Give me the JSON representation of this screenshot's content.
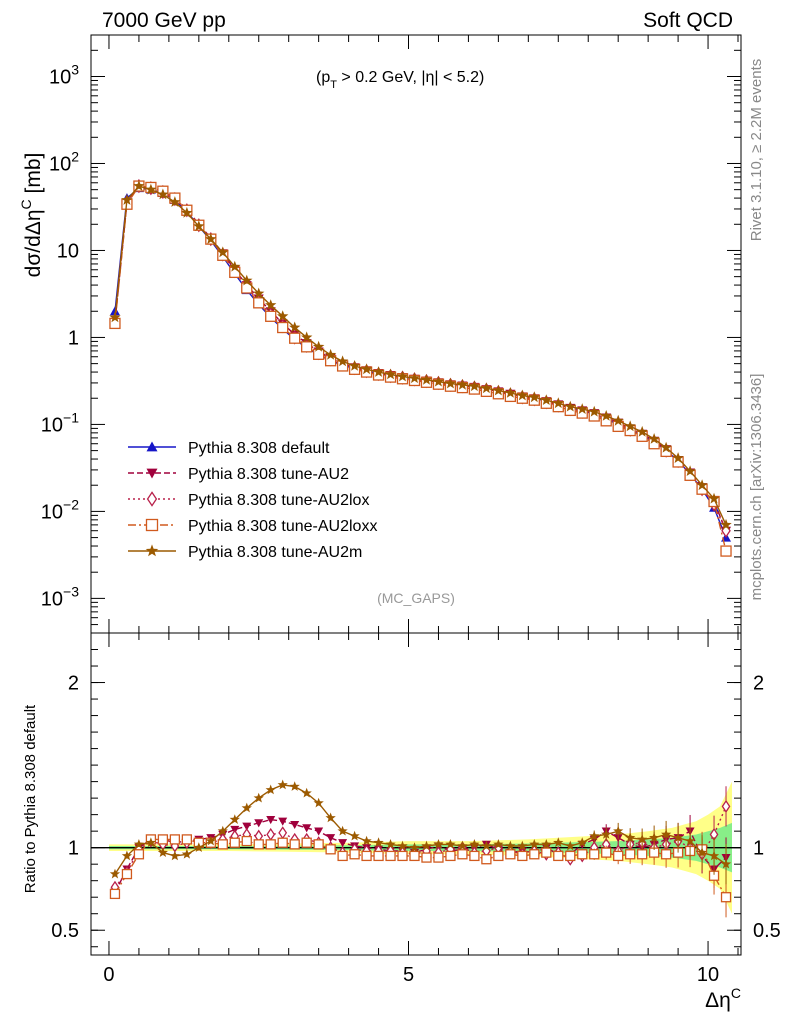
{
  "header": {
    "left": "7000 GeV pp",
    "right": "Soft QCD"
  },
  "annotation": "(MC_GAPS)",
  "cut_label": {
    "a": "(p",
    "b": "T",
    "c": " > 0.2 GeV, |η| < 5.2)"
  },
  "side_labels": {
    "rivet": "Rivet 3.1.10, ≥ 2.2M events",
    "mcplots": "mcplots.cern.ch [arXiv:1306.3436]"
  },
  "chart_data": [
    {
      "type": "line",
      "panel": "main",
      "ylabel": "dσ/dΔη^C [mb]",
      "yscale": "log",
      "ylim": [
        0.0004,
        3000
      ],
      "xlim": [
        -0.3,
        10.55
      ],
      "y_ticks": [
        {
          "v": 0.001,
          "base": "10",
          "exp": "−3"
        },
        {
          "v": 0.01,
          "base": "10",
          "exp": "−2"
        },
        {
          "v": 0.1,
          "base": "10",
          "exp": "−1"
        },
        {
          "v": 1,
          "base": "1",
          "exp": ""
        },
        {
          "v": 10,
          "base": "10",
          "exp": ""
        },
        {
          "v": 100,
          "base": "10",
          "exp": "2"
        },
        {
          "v": 1000,
          "base": "10",
          "exp": "3"
        }
      ],
      "legend_position": "lower-left",
      "x": [
        0.1,
        0.3,
        0.5,
        0.7,
        0.9,
        1.1,
        1.3,
        1.5,
        1.7,
        1.9,
        2.1,
        2.3,
        2.5,
        2.7,
        2.9,
        3.1,
        3.3,
        3.5,
        3.7,
        3.9,
        4.1,
        4.3,
        4.5,
        4.7,
        4.9,
        5.1,
        5.3,
        5.5,
        5.7,
        5.9,
        6.1,
        6.3,
        6.5,
        6.7,
        6.9,
        7.1,
        7.3,
        7.5,
        7.7,
        7.9,
        8.1,
        8.3,
        8.5,
        8.7,
        8.9,
        9.1,
        9.3,
        9.5,
        9.7,
        9.9,
        10.1,
        10.3
      ],
      "series": [
        {
          "name": "Pythia 8.308 default",
          "color": "#1616c8",
          "marker": "triangle-up",
          "dash": "",
          "values": [
            2.0,
            40,
            52,
            50,
            46,
            38,
            28,
            19,
            13,
            8.5,
            5.4,
            3.5,
            2.4,
            1.7,
            1.25,
            0.95,
            0.76,
            0.63,
            0.54,
            0.48,
            0.44,
            0.41,
            0.385,
            0.365,
            0.35,
            0.335,
            0.32,
            0.305,
            0.29,
            0.28,
            0.27,
            0.255,
            0.24,
            0.225,
            0.21,
            0.2,
            0.185,
            0.17,
            0.155,
            0.145,
            0.13,
            0.115,
            0.1,
            0.087,
            0.075,
            0.063,
            0.05,
            0.038,
            0.027,
            0.018,
            0.011,
            0.005
          ]
        },
        {
          "name": "Pythia 8.308 tune-AU2",
          "color": "#a0003c",
          "marker": "triangle-down",
          "dash": "6,3",
          "values": [
            1.5,
            35,
            56,
            52,
            48,
            40,
            30,
            20,
            14,
            9.3,
            6.0,
            4.0,
            2.8,
            2.0,
            1.45,
            1.08,
            0.86,
            0.69,
            0.58,
            0.5,
            0.455,
            0.42,
            0.39,
            0.37,
            0.35,
            0.335,
            0.32,
            0.305,
            0.29,
            0.28,
            0.27,
            0.255,
            0.24,
            0.225,
            0.21,
            0.2,
            0.185,
            0.17,
            0.155,
            0.145,
            0.135,
            0.12,
            0.105,
            0.09,
            0.078,
            0.065,
            0.052,
            0.039,
            0.028,
            0.019,
            0.013,
            0.006
          ]
        },
        {
          "name": "Pythia 8.308 tune-AU2lox",
          "color": "#b8204a",
          "marker": "diamond",
          "dash": "2,3",
          "values": [
            1.55,
            36,
            55,
            52,
            47,
            39,
            29,
            19.5,
            13.5,
            9,
            5.8,
            3.8,
            2.6,
            1.85,
            1.35,
            1.0,
            0.8,
            0.66,
            0.56,
            0.49,
            0.445,
            0.41,
            0.38,
            0.36,
            0.345,
            0.33,
            0.315,
            0.3,
            0.285,
            0.275,
            0.265,
            0.25,
            0.235,
            0.22,
            0.205,
            0.195,
            0.18,
            0.165,
            0.15,
            0.14,
            0.13,
            0.115,
            0.1,
            0.087,
            0.076,
            0.063,
            0.05,
            0.038,
            0.027,
            0.018,
            0.012,
            0.006
          ]
        },
        {
          "name": "Pythia 8.308 tune-AU2loxx",
          "color": "#d05a1e",
          "marker": "square",
          "dash": "8,3,2,3",
          "values": [
            1.45,
            34,
            55,
            53,
            48,
            40,
            29,
            19.5,
            13.5,
            8.8,
            5.6,
            3.7,
            2.5,
            1.75,
            1.3,
            0.98,
            0.78,
            0.64,
            0.54,
            0.47,
            0.43,
            0.4,
            0.37,
            0.35,
            0.335,
            0.32,
            0.305,
            0.29,
            0.275,
            0.265,
            0.255,
            0.24,
            0.225,
            0.21,
            0.2,
            0.19,
            0.175,
            0.16,
            0.145,
            0.135,
            0.125,
            0.11,
            0.095,
            0.085,
            0.073,
            0.06,
            0.049,
            0.037,
            0.026,
            0.018,
            0.013,
            0.0035
          ]
        },
        {
          "name": "Pythia 8.308 tune-AU2m",
          "color": "#9c5a00",
          "marker": "star",
          "dash": "",
          "values": [
            1.7,
            38,
            55,
            50,
            44,
            36,
            27,
            19,
            13.5,
            9.5,
            6.5,
            4.5,
            3.2,
            2.35,
            1.75,
            1.3,
            1.0,
            0.78,
            0.63,
            0.53,
            0.47,
            0.43,
            0.4,
            0.375,
            0.355,
            0.34,
            0.325,
            0.31,
            0.295,
            0.285,
            0.275,
            0.26,
            0.245,
            0.23,
            0.215,
            0.205,
            0.19,
            0.175,
            0.16,
            0.15,
            0.14,
            0.125,
            0.11,
            0.095,
            0.082,
            0.068,
            0.054,
            0.041,
            0.029,
            0.02,
            0.014,
            0.007
          ]
        }
      ]
    },
    {
      "type": "line",
      "panel": "ratio",
      "ylabel": "Ratio to Pythia 8.308 default",
      "xlabel_base": "Δη",
      "xlabel_sup": "C",
      "ylim": [
        0.35,
        2.3
      ],
      "xlim": [
        -0.3,
        10.55
      ],
      "x_ticks": [
        0,
        5,
        10
      ],
      "y_ticks": [
        0.5,
        1,
        2
      ],
      "band": {
        "x": [
          0.0,
          1.0,
          2.0,
          3.0,
          4.0,
          5.0,
          6.0,
          7.0,
          7.5,
          8.0,
          8.5,
          9.0,
          9.2,
          9.4,
          9.6,
          9.8,
          10.0,
          10.2,
          10.4
        ],
        "green": [
          0.01,
          0.01,
          0.01,
          0.012,
          0.015,
          0.02,
          0.02,
          0.025,
          0.03,
          0.035,
          0.04,
          0.05,
          0.055,
          0.06,
          0.07,
          0.08,
          0.1,
          0.12,
          0.15
        ],
        "yellow": [
          0.02,
          0.02,
          0.02,
          0.025,
          0.03,
          0.04,
          0.04,
          0.05,
          0.06,
          0.07,
          0.08,
          0.1,
          0.11,
          0.12,
          0.14,
          0.16,
          0.2,
          0.25,
          0.4
        ]
      },
      "x": [
        0.1,
        0.3,
        0.5,
        0.7,
        0.9,
        1.1,
        1.3,
        1.5,
        1.7,
        1.9,
        2.1,
        2.3,
        2.5,
        2.7,
        2.9,
        3.1,
        3.3,
        3.5,
        3.7,
        3.9,
        4.1,
        4.3,
        4.5,
        4.7,
        4.9,
        5.1,
        5.3,
        5.5,
        5.7,
        5.9,
        6.1,
        6.3,
        6.5,
        6.7,
        6.9,
        7.1,
        7.3,
        7.5,
        7.7,
        7.9,
        8.1,
        8.3,
        8.5,
        8.7,
        8.9,
        9.1,
        9.3,
        9.5,
        9.7,
        9.9,
        10.1,
        10.3
      ],
      "series": [
        {
          "name": "Pythia 8.308 tune-AU2",
          "color": "#a0003c",
          "marker": "triangle-down",
          "dash": "6,3",
          "values": [
            0.73,
            0.87,
            1.0,
            1.05,
            1.05,
            1.03,
            1.04,
            1.05,
            1.06,
            1.08,
            1.11,
            1.13,
            1.15,
            1.17,
            1.16,
            1.14,
            1.12,
            1.1,
            1.06,
            1.03,
            1.01,
            1.0,
            0.99,
            0.98,
            0.98,
            0.97,
            0.99,
            1.01,
            0.98,
            0.99,
            1.0,
            1.02,
            0.99,
            0.97,
            0.98,
            0.97,
            1.0,
            0.96,
            0.96,
            1.02,
            1.05,
            1.1,
            1.06,
            1.02,
            1.0,
            1.02,
            1.05,
            1.06,
            1.1,
            0.95,
            0.87,
            0.94
          ]
        },
        {
          "name": "Pythia 8.308 tune-AU2lox",
          "color": "#b8204a",
          "marker": "diamond",
          "dash": "2,3",
          "values": [
            0.76,
            0.85,
            0.99,
            1.04,
            1.02,
            1.01,
            1.03,
            1.02,
            1.03,
            1.05,
            1.07,
            1.08,
            1.07,
            1.08,
            1.09,
            1.05,
            1.05,
            1.03,
            1.0,
            0.97,
            0.99,
            0.98,
            0.98,
            0.98,
            0.97,
            0.96,
            0.98,
            0.97,
            0.99,
            1.0,
            0.97,
            0.98,
            1.0,
            0.98,
            0.96,
            0.98,
            0.96,
            0.97,
            0.93,
            0.95,
            1.0,
            1.02,
            0.98,
            1.02,
            1.03,
            1.0,
            1.02,
            1.04,
            1.0,
            0.96,
            1.08,
            1.25
          ]
        },
        {
          "name": "Pythia 8.308 tune-AU2loxx",
          "color": "#d05a1e",
          "marker": "square",
          "dash": "8,3,2,3",
          "values": [
            0.72,
            0.84,
            0.96,
            1.05,
            1.05,
            1.05,
            1.05,
            1.03,
            1.03,
            1.02,
            1.03,
            1.04,
            1.02,
            1.02,
            1.03,
            1.02,
            1.03,
            1.02,
            0.99,
            0.95,
            0.96,
            0.95,
            0.95,
            0.95,
            0.95,
            0.95,
            0.94,
            0.94,
            0.95,
            0.96,
            0.95,
            0.93,
            0.95,
            0.96,
            0.95,
            0.96,
            0.97,
            0.95,
            0.95,
            0.96,
            0.96,
            0.97,
            0.95,
            0.96,
            0.96,
            0.97,
            0.96,
            0.97,
            0.98,
            0.99,
            0.83,
            0.7
          ]
        },
        {
          "name": "Pythia 8.308 tune-AU2m",
          "color": "#9c5a00",
          "marker": "star",
          "dash": "",
          "values": [
            0.84,
            0.95,
            1.02,
            1.03,
            0.97,
            0.95,
            0.96,
            1.0,
            1.04,
            1.1,
            1.17,
            1.24,
            1.3,
            1.35,
            1.38,
            1.37,
            1.33,
            1.27,
            1.18,
            1.1,
            1.07,
            1.04,
            1.03,
            1.02,
            1.01,
            1.0,
            1.01,
            1.02,
            1.02,
            1.01,
            1.02,
            1.01,
            1.02,
            1.01,
            1.01,
            1.02,
            1.02,
            1.03,
            1.01,
            1.03,
            1.07,
            1.08,
            1.1,
            1.06,
            1.05,
            1.06,
            1.08,
            1.06,
            1.04,
            0.97,
            0.95,
            0.9
          ]
        }
      ]
    }
  ]
}
